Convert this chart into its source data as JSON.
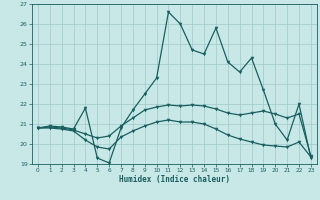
{
  "title": "",
  "xlabel": "Humidex (Indice chaleur)",
  "ylabel": "",
  "xlim": [
    -0.5,
    23.5
  ],
  "ylim": [
    19,
    27
  ],
  "yticks": [
    19,
    20,
    21,
    22,
    23,
    24,
    25,
    26,
    27
  ],
  "xticks": [
    0,
    1,
    2,
    3,
    4,
    5,
    6,
    7,
    8,
    9,
    10,
    11,
    12,
    13,
    14,
    15,
    16,
    17,
    18,
    19,
    20,
    21,
    22,
    23
  ],
  "background_color": "#c8e8e8",
  "grid_color": "#a0c8c8",
  "line_color": "#1a5f5f",
  "series1_x": [
    0,
    1,
    2,
    3,
    4,
    5,
    6,
    7,
    8,
    9,
    10,
    11,
    12,
    13,
    14,
    15,
    16,
    17,
    18,
    19,
    20,
    21,
    22,
    23
  ],
  "series1_y": [
    20.8,
    20.9,
    20.85,
    20.75,
    21.8,
    19.3,
    19.05,
    20.8,
    21.7,
    22.5,
    23.3,
    26.6,
    26.0,
    24.7,
    24.5,
    25.8,
    24.1,
    23.6,
    24.3,
    22.7,
    21.0,
    20.2,
    22.0,
    19.3
  ],
  "series2_x": [
    0,
    1,
    2,
    3,
    4,
    5,
    6,
    7,
    8,
    9,
    10,
    11,
    12,
    13,
    14,
    15,
    16,
    17,
    18,
    19,
    20,
    21,
    22,
    23
  ],
  "series2_y": [
    20.8,
    20.85,
    20.8,
    20.7,
    20.5,
    20.3,
    20.4,
    20.9,
    21.3,
    21.7,
    21.85,
    21.95,
    21.9,
    21.95,
    21.9,
    21.75,
    21.55,
    21.45,
    21.55,
    21.65,
    21.5,
    21.3,
    21.5,
    19.4
  ],
  "series3_x": [
    0,
    1,
    2,
    3,
    4,
    5,
    6,
    7,
    8,
    9,
    10,
    11,
    12,
    13,
    14,
    15,
    16,
    17,
    18,
    19,
    20,
    21,
    22,
    23
  ],
  "series3_y": [
    20.8,
    20.8,
    20.75,
    20.65,
    20.2,
    19.85,
    19.75,
    20.35,
    20.65,
    20.9,
    21.1,
    21.2,
    21.1,
    21.1,
    21.0,
    20.75,
    20.45,
    20.25,
    20.1,
    19.95,
    19.9,
    19.85,
    20.1,
    19.35
  ]
}
